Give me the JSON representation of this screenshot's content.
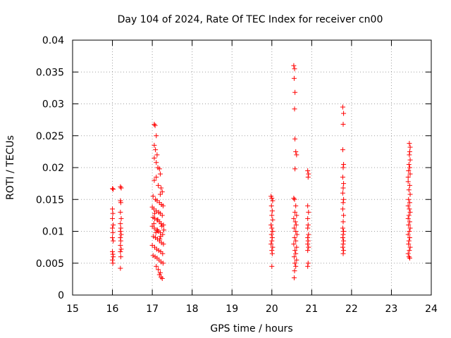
{
  "chart_data": {
    "type": "scatter",
    "title": "Day 104 of 2024, Rate Of TEC Index for receiver cn00",
    "xlabel": "GPS time / hours",
    "ylabel": "ROTI / TECUs",
    "xlim": [
      15,
      24
    ],
    "ylim": [
      0,
      0.04
    ],
    "x_ticks": [
      15,
      16,
      17,
      18,
      19,
      20,
      21,
      22,
      23,
      24
    ],
    "x_tick_labels": [
      "15",
      "16",
      "17",
      "18",
      "19",
      "20",
      "21",
      "22",
      "23",
      "24"
    ],
    "y_ticks": [
      0,
      0.005,
      0.01,
      0.015,
      0.02,
      0.025,
      0.03,
      0.035,
      0.04
    ],
    "y_tick_labels": [
      "0",
      "0.005",
      "0.01",
      "0.015",
      "0.02",
      "0.025",
      "0.03",
      "0.035",
      "0.04"
    ],
    "grid": true,
    "marker": "+",
    "series": [
      {
        "name": "ROTI",
        "color": "#ff0000",
        "points": [
          [
            16.0,
            0.0167
          ],
          [
            16.02,
            0.0166
          ],
          [
            16.0,
            0.0135
          ],
          [
            16.01,
            0.0128
          ],
          [
            16.0,
            0.012
          ],
          [
            16.02,
            0.011
          ],
          [
            16.0,
            0.0105
          ],
          [
            16.01,
            0.0098
          ],
          [
            16.0,
            0.009
          ],
          [
            16.02,
            0.0085
          ],
          [
            16.0,
            0.0068
          ],
          [
            16.01,
            0.0064
          ],
          [
            16.02,
            0.006
          ],
          [
            16.0,
            0.0055
          ],
          [
            16.01,
            0.005
          ],
          [
            16.2,
            0.017
          ],
          [
            16.22,
            0.0168
          ],
          [
            16.2,
            0.0148
          ],
          [
            16.21,
            0.0145
          ],
          [
            16.2,
            0.013
          ],
          [
            16.22,
            0.012
          ],
          [
            16.2,
            0.0112
          ],
          [
            16.21,
            0.0105
          ],
          [
            16.2,
            0.01
          ],
          [
            16.22,
            0.0095
          ],
          [
            16.2,
            0.009
          ],
          [
            16.21,
            0.0085
          ],
          [
            16.2,
            0.0078
          ],
          [
            16.22,
            0.0072
          ],
          [
            16.2,
            0.0068
          ],
          [
            16.21,
            0.006
          ],
          [
            16.2,
            0.0042
          ],
          [
            17.05,
            0.0268
          ],
          [
            17.07,
            0.0266
          ],
          [
            17.1,
            0.025
          ],
          [
            17.05,
            0.0235
          ],
          [
            17.08,
            0.0228
          ],
          [
            17.12,
            0.022
          ],
          [
            17.05,
            0.0215
          ],
          [
            17.1,
            0.0208
          ],
          [
            17.14,
            0.02
          ],
          [
            17.18,
            0.0198
          ],
          [
            17.2,
            0.019
          ],
          [
            17.1,
            0.0185
          ],
          [
            17.05,
            0.018
          ],
          [
            17.15,
            0.0172
          ],
          [
            17.22,
            0.0168
          ],
          [
            17.25,
            0.0162
          ],
          [
            17.2,
            0.0158
          ],
          [
            17.02,
            0.0155
          ],
          [
            17.08,
            0.015
          ],
          [
            17.12,
            0.0148
          ],
          [
            17.18,
            0.0145
          ],
          [
            17.23,
            0.0142
          ],
          [
            17.27,
            0.014
          ],
          [
            17.0,
            0.0138
          ],
          [
            17.04,
            0.0135
          ],
          [
            17.1,
            0.0132
          ],
          [
            17.16,
            0.013
          ],
          [
            17.2,
            0.0128
          ],
          [
            17.25,
            0.0125
          ],
          [
            17.02,
            0.0122
          ],
          [
            17.06,
            0.012
          ],
          [
            17.12,
            0.0118
          ],
          [
            17.18,
            0.0115
          ],
          [
            17.22,
            0.0112
          ],
          [
            17.28,
            0.011
          ],
          [
            17.0,
            0.0108
          ],
          [
            17.05,
            0.0105
          ],
          [
            17.1,
            0.0102
          ],
          [
            17.15,
            0.01
          ],
          [
            17.2,
            0.0098
          ],
          [
            17.26,
            0.0095
          ],
          [
            17.03,
            0.0092
          ],
          [
            17.08,
            0.009
          ],
          [
            17.13,
            0.0088
          ],
          [
            17.18,
            0.0085
          ],
          [
            17.23,
            0.0082
          ],
          [
            17.28,
            0.008
          ],
          [
            17.0,
            0.0078
          ],
          [
            17.06,
            0.0075
          ],
          [
            17.11,
            0.0072
          ],
          [
            17.16,
            0.007
          ],
          [
            17.21,
            0.0068
          ],
          [
            17.26,
            0.0065
          ],
          [
            17.02,
            0.0062
          ],
          [
            17.07,
            0.006
          ],
          [
            17.12,
            0.0058
          ],
          [
            17.17,
            0.0055
          ],
          [
            17.22,
            0.0052
          ],
          [
            17.27,
            0.005
          ],
          [
            17.1,
            0.0045
          ],
          [
            17.15,
            0.004
          ],
          [
            17.2,
            0.0035
          ],
          [
            17.18,
            0.0032
          ],
          [
            17.22,
            0.0028
          ],
          [
            17.25,
            0.0026
          ],
          [
            17.06,
            0.0128
          ],
          [
            17.14,
            0.0118
          ],
          [
            17.24,
            0.0108
          ],
          [
            17.09,
            0.0098
          ],
          [
            17.19,
            0.0088
          ],
          [
            17.04,
            0.0112
          ],
          [
            17.13,
            0.0102
          ],
          [
            17.21,
            0.0092
          ],
          [
            17.29,
            0.0102
          ],
          [
            19.98,
            0.0155
          ],
          [
            20.0,
            0.0152
          ],
          [
            20.02,
            0.0148
          ],
          [
            19.99,
            0.014
          ],
          [
            20.01,
            0.0132
          ],
          [
            20.0,
            0.0125
          ],
          [
            20.02,
            0.0118
          ],
          [
            19.98,
            0.011
          ],
          [
            20.0,
            0.0105
          ],
          [
            20.02,
            0.01
          ],
          [
            19.99,
            0.0095
          ],
          [
            20.01,
            0.009
          ],
          [
            20.0,
            0.0085
          ],
          [
            19.98,
            0.008
          ],
          [
            20.02,
            0.0075
          ],
          [
            20.0,
            0.007
          ],
          [
            20.01,
            0.0065
          ],
          [
            20.0,
            0.0045
          ],
          [
            20.55,
            0.036
          ],
          [
            20.57,
            0.0355
          ],
          [
            20.56,
            0.034
          ],
          [
            20.58,
            0.0318
          ],
          [
            20.57,
            0.0292
          ],
          [
            20.58,
            0.0245
          ],
          [
            20.6,
            0.0225
          ],
          [
            20.62,
            0.022
          ],
          [
            20.58,
            0.0198
          ],
          [
            20.55,
            0.0152
          ],
          [
            20.57,
            0.015
          ],
          [
            20.6,
            0.014
          ],
          [
            20.58,
            0.013
          ],
          [
            20.62,
            0.0125
          ],
          [
            20.55,
            0.012
          ],
          [
            20.59,
            0.0115
          ],
          [
            20.61,
            0.011
          ],
          [
            20.56,
            0.0105
          ],
          [
            20.6,
            0.01
          ],
          [
            20.63,
            0.0095
          ],
          [
            20.57,
            0.009
          ],
          [
            20.6,
            0.0085
          ],
          [
            20.55,
            0.008
          ],
          [
            20.62,
            0.0075
          ],
          [
            20.58,
            0.007
          ],
          [
            20.6,
            0.0065
          ],
          [
            20.56,
            0.006
          ],
          [
            20.62,
            0.0055
          ],
          [
            20.58,
            0.005
          ],
          [
            20.6,
            0.0045
          ],
          [
            20.57,
            0.0038
          ],
          [
            20.56,
            0.0027
          ],
          [
            20.9,
            0.0195
          ],
          [
            20.92,
            0.019
          ],
          [
            20.91,
            0.0185
          ],
          [
            20.9,
            0.014
          ],
          [
            20.92,
            0.013
          ],
          [
            20.9,
            0.012
          ],
          [
            20.91,
            0.011
          ],
          [
            20.9,
            0.0105
          ],
          [
            20.92,
            0.0095
          ],
          [
            20.9,
            0.009
          ],
          [
            20.91,
            0.0085
          ],
          [
            20.9,
            0.008
          ],
          [
            20.92,
            0.0075
          ],
          [
            20.9,
            0.007
          ],
          [
            20.91,
            0.005
          ],
          [
            20.9,
            0.0045
          ],
          [
            21.78,
            0.0295
          ],
          [
            21.8,
            0.0285
          ],
          [
            21.79,
            0.0268
          ],
          [
            21.78,
            0.0228
          ],
          [
            21.8,
            0.0205
          ],
          [
            21.79,
            0.02
          ],
          [
            21.78,
            0.0185
          ],
          [
            21.8,
            0.0175
          ],
          [
            21.79,
            0.0168
          ],
          [
            21.78,
            0.016
          ],
          [
            21.8,
            0.015
          ],
          [
            21.79,
            0.0145
          ],
          [
            21.78,
            0.0135
          ],
          [
            21.8,
            0.0125
          ],
          [
            21.79,
            0.0115
          ],
          [
            21.78,
            0.0105
          ],
          [
            21.8,
            0.01
          ],
          [
            21.79,
            0.0095
          ],
          [
            21.78,
            0.009
          ],
          [
            21.8,
            0.0085
          ],
          [
            21.79,
            0.008
          ],
          [
            21.78,
            0.0075
          ],
          [
            21.8,
            0.007
          ],
          [
            21.79,
            0.0065
          ],
          [
            23.42,
            0.0185
          ],
          [
            23.45,
            0.0238
          ],
          [
            23.47,
            0.0232
          ],
          [
            23.46,
            0.0225
          ],
          [
            23.45,
            0.022
          ],
          [
            23.47,
            0.0212
          ],
          [
            23.44,
            0.0205
          ],
          [
            23.46,
            0.02
          ],
          [
            23.43,
            0.0195
          ],
          [
            23.47,
            0.019
          ],
          [
            23.42,
            0.0178
          ],
          [
            23.46,
            0.0172
          ],
          [
            23.44,
            0.0165
          ],
          [
            23.47,
            0.0158
          ],
          [
            23.43,
            0.015
          ],
          [
            23.46,
            0.0145
          ],
          [
            23.42,
            0.014
          ],
          [
            23.45,
            0.0135
          ],
          [
            23.47,
            0.013
          ],
          [
            23.44,
            0.0125
          ],
          [
            23.42,
            0.012
          ],
          [
            23.46,
            0.0115
          ],
          [
            23.43,
            0.011
          ],
          [
            23.47,
            0.0105
          ],
          [
            23.45,
            0.01
          ],
          [
            23.42,
            0.0095
          ],
          [
            23.46,
            0.009
          ],
          [
            23.44,
            0.0085
          ],
          [
            23.43,
            0.008
          ],
          [
            23.47,
            0.0075
          ],
          [
            23.45,
            0.007
          ],
          [
            23.42,
            0.0065
          ],
          [
            23.44,
            0.006
          ],
          [
            23.46,
            0.0058
          ]
        ]
      }
    ]
  }
}
